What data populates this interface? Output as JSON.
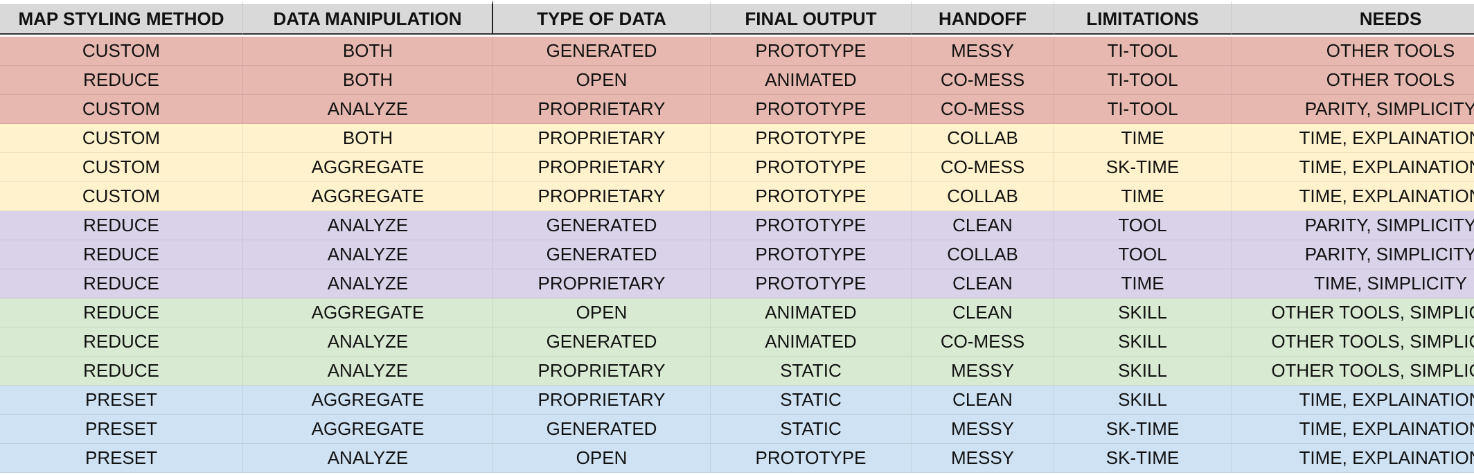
{
  "table": {
    "headers": [
      "MAP STYLING METHOD",
      "DATA MANIPULATION",
      "TYPE OF DATA",
      "FINAL OUTPUT",
      "HANDOFF",
      "LIMITATIONS",
      "NEEDS"
    ],
    "groups": [
      {
        "color": "#e6b8af",
        "rows": [
          [
            "CUSTOM",
            "BOTH",
            "GENERATED",
            "PROTOTYPE",
            "MESSY",
            "TI-TOOL",
            "OTHER TOOLS"
          ],
          [
            "REDUCE",
            "BOTH",
            "OPEN",
            "ANIMATED",
            "CO-MESS",
            "TI-TOOL",
            "OTHER TOOLS"
          ],
          [
            "CUSTOM",
            "ANALYZE",
            "PROPRIETARY",
            "PROTOTYPE",
            "CO-MESS",
            "TI-TOOL",
            "PARITY, SIMPLICITY"
          ]
        ]
      },
      {
        "color": "#fff2cc",
        "rows": [
          [
            "CUSTOM",
            "BOTH",
            "PROPRIETARY",
            "PROTOTYPE",
            "COLLAB",
            "TIME",
            "TIME, EXPLAINATION"
          ],
          [
            "CUSTOM",
            "AGGREGATE",
            "PROPRIETARY",
            "PROTOTYPE",
            "CO-MESS",
            "SK-TIME",
            "TIME, EXPLAINATION"
          ],
          [
            "CUSTOM",
            "AGGREGATE",
            "PROPRIETARY",
            "PROTOTYPE",
            "COLLAB",
            "TIME",
            "TIME, EXPLAINATION"
          ]
        ]
      },
      {
        "color": "#d9d2e9",
        "rows": [
          [
            "REDUCE",
            "ANALYZE",
            "GENERATED",
            "PROTOTYPE",
            "CLEAN",
            "TOOL",
            "PARITY, SIMPLICITY"
          ],
          [
            "REDUCE",
            "ANALYZE",
            "GENERATED",
            "PROTOTYPE",
            "COLLAB",
            "TOOL",
            "PARITY, SIMPLICITY"
          ],
          [
            "REDUCE",
            "ANALYZE",
            "PROPRIETARY",
            "PROTOTYPE",
            "CLEAN",
            "TIME",
            "TIME, SIMPLICITY"
          ]
        ]
      },
      {
        "color": "#d9ead3",
        "rows": [
          [
            "REDUCE",
            "AGGREGATE",
            "OPEN",
            "ANIMATED",
            "CLEAN",
            "SKILL",
            "OTHER TOOLS, SIMPLICITY"
          ],
          [
            "REDUCE",
            "ANALYZE",
            "GENERATED",
            "ANIMATED",
            "CO-MESS",
            "SKILL",
            "OTHER TOOLS, SIMPLICITY"
          ],
          [
            "REDUCE",
            "ANALYZE",
            "PROPRIETARY",
            "STATIC",
            "MESSY",
            "SKILL",
            "OTHER TOOLS, SIMPLICITY"
          ]
        ]
      },
      {
        "color": "#cfe2f3",
        "rows": [
          [
            "PRESET",
            "AGGREGATE",
            "PROPRIETARY",
            "STATIC",
            "CLEAN",
            "SKILL",
            "TIME, EXPLAINATION"
          ],
          [
            "PRESET",
            "AGGREGATE",
            "GENERATED",
            "STATIC",
            "MESSY",
            "SK-TIME",
            "TIME, EXPLAINATION"
          ],
          [
            "PRESET",
            "ANALYZE",
            "OPEN",
            "PROTOTYPE",
            "MESSY",
            "SK-TIME",
            "TIME, EXPLAINATION"
          ]
        ]
      }
    ]
  }
}
